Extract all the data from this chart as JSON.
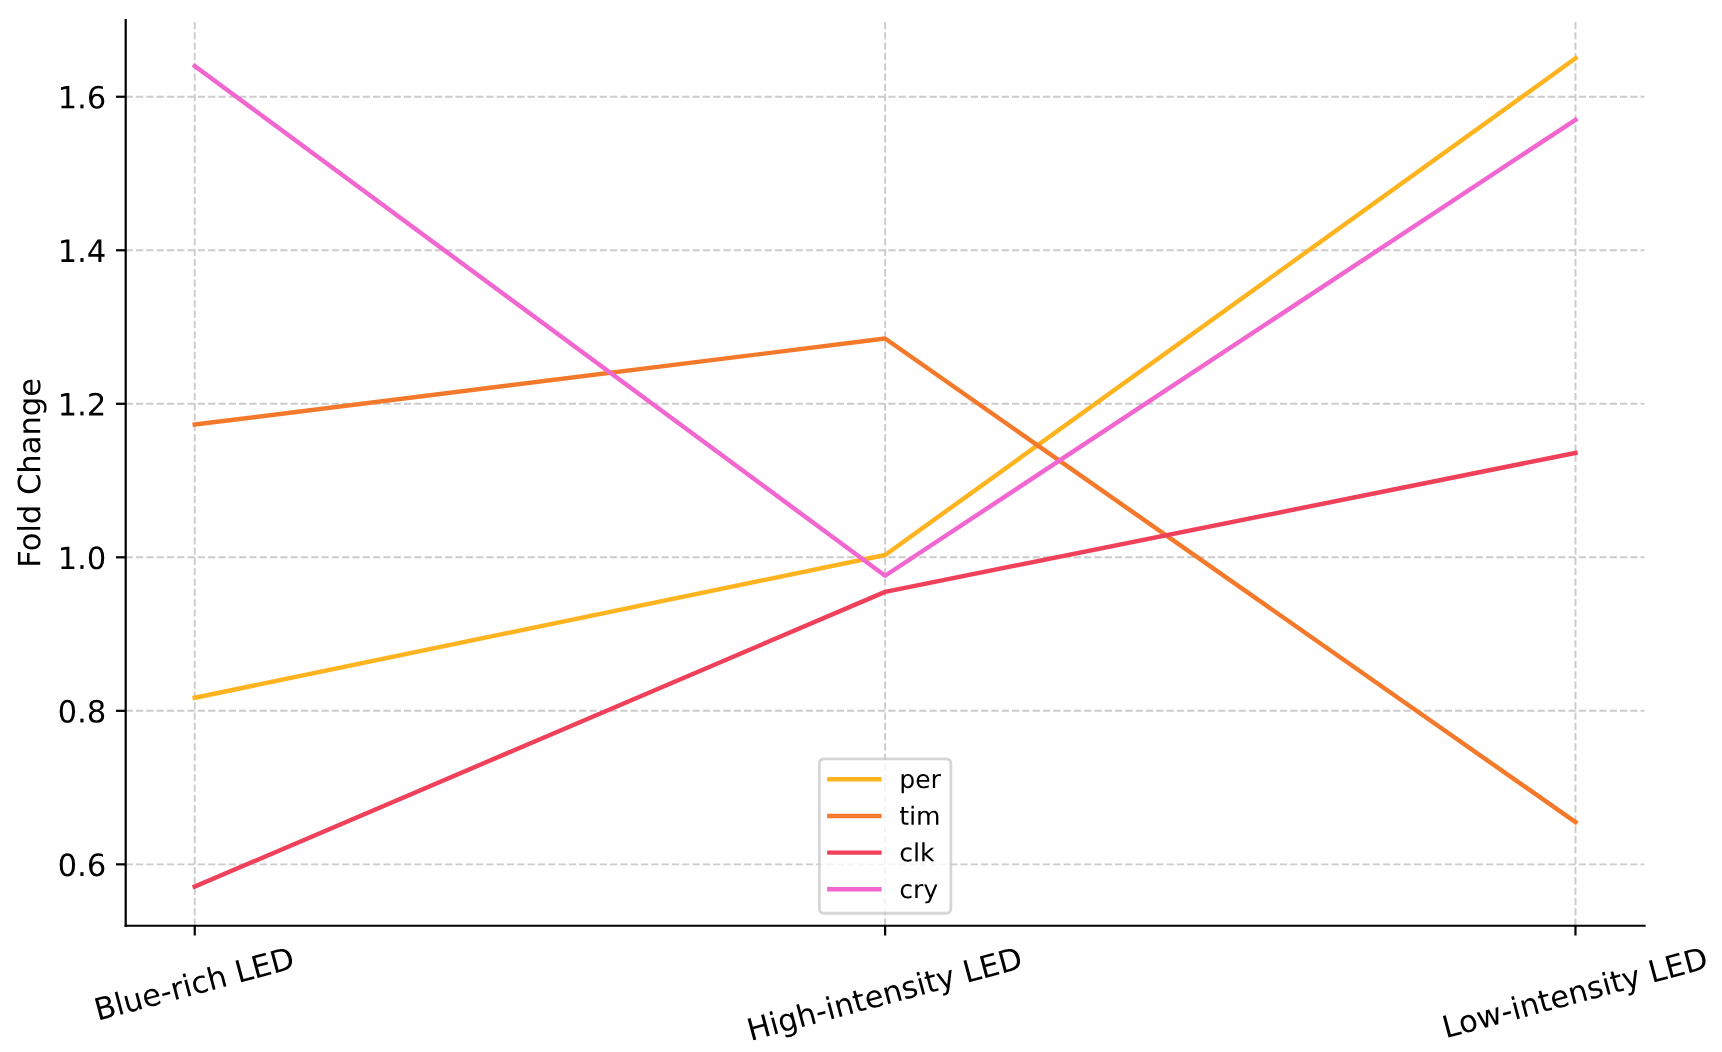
{
  "chart_data": {
    "type": "line",
    "ylabel": "Fold Change",
    "categories": [
      "Blue-rich LED",
      "High-intensity LED",
      "Low-intensity LED"
    ],
    "series": [
      {
        "name": "per",
        "color": "#ffb31f",
        "values": [
          0.817,
          1.003,
          1.65
        ]
      },
      {
        "name": "tim",
        "color": "#f5792a",
        "values": [
          1.173,
          1.285,
          0.655
        ]
      },
      {
        "name": "clk",
        "color": "#f0405a",
        "values": [
          0.571,
          0.955,
          1.136
        ]
      },
      {
        "name": "cry",
        "color": "#f266d0",
        "values": [
          1.64,
          0.976,
          1.57
        ]
      }
    ],
    "ylim": [
      0.52,
      1.7
    ],
    "yticks": [
      0.6,
      0.8,
      {
        "value": 1,
        "label": "1.0"
      },
      1.2,
      1.4,
      1.6
    ],
    "grid": true,
    "legend": "bottom",
    "marker": "none",
    "line_style": "solid"
  }
}
